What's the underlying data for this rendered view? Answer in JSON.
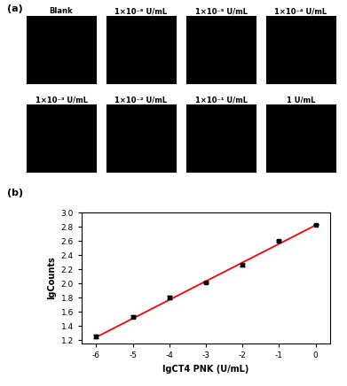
{
  "chart_data": [
    {
      "type": "image_grid",
      "title": "(a)",
      "panels": [
        "Blank",
        "1×10⁻⁶ U/mL",
        "1×10⁻⁵ U/mL",
        "1×10⁻⁴ U/mL",
        "1×10⁻³ U/mL",
        "1×10⁻² U/mL",
        "1×10⁻¹ U/mL",
        "1 U/mL"
      ],
      "color": "#000000"
    },
    {
      "type": "scatter",
      "title": "(b)",
      "x_label": "lgCT4 PNK (U/mL)",
      "y_label": "lgCounts",
      "x": [
        -6,
        -5,
        -4,
        -3,
        -2,
        -1,
        0
      ],
      "values": [
        1.25,
        1.53,
        1.8,
        2.01,
        2.26,
        2.6,
        2.83
      ],
      "errors": [
        0.02,
        0.02,
        0.03,
        0.01,
        0.02,
        0.01,
        0.01
      ],
      "color": "#000000",
      "marker": "square",
      "fit_line": {
        "x": [
          -6,
          0
        ],
        "values": [
          1.24,
          2.82
        ],
        "color": "#ff0000"
      },
      "xlim": [
        -6.4,
        0.4
      ],
      "xticks": [
        -6,
        -5,
        -4,
        -3,
        -2,
        -1,
        0
      ],
      "ylim": [
        1.15,
        3.0
      ],
      "yticks": [
        1.2,
        1.4,
        1.6,
        1.8,
        2.0,
        2.2,
        2.4,
        2.6,
        2.8,
        3.0
      ],
      "grid": false
    }
  ]
}
